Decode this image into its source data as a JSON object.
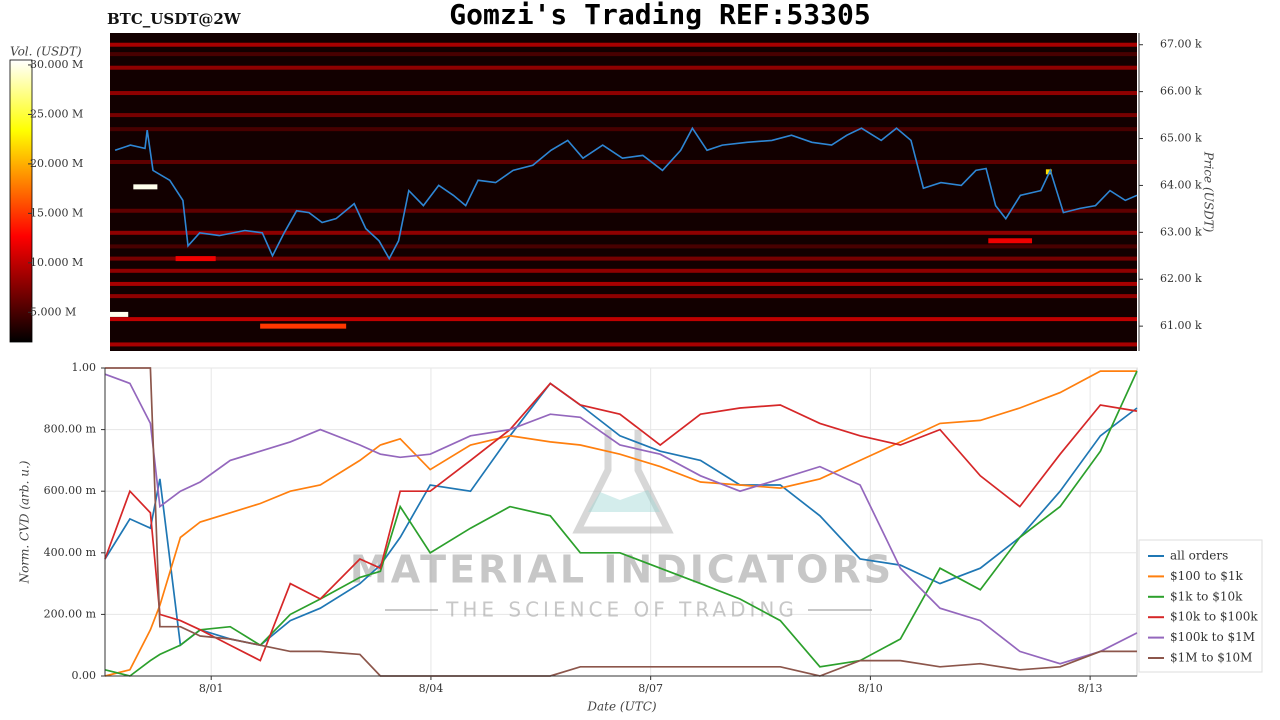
{
  "title": "Gomzi's Trading REF:53305",
  "watermark": {
    "title": "MATERIAL INDICATORS",
    "subtitle": "THE SCIENCE OF TRADING"
  },
  "chart_data": [
    {
      "type": "heatmap",
      "title": "BTC_USDT@2W",
      "ylabel": "Price (USDT)",
      "colorbar_label": "Vol. (USDT)",
      "xlim": [
        -0.45,
        13.64
      ],
      "ylim": [
        60470,
        67250
      ],
      "yticks": [
        {
          "value": 61000,
          "label": "61.00 k"
        },
        {
          "value": 62000,
          "label": "62.00 k"
        },
        {
          "value": 63000,
          "label": "63.00 k"
        },
        {
          "value": 64000,
          "label": "64.00 k"
        },
        {
          "value": 65000,
          "label": "65.00 k"
        },
        {
          "value": 66000,
          "label": "66.00 k"
        },
        {
          "value": 67000,
          "label": "67.00 k"
        }
      ],
      "clim": [
        2000000,
        30500000
      ],
      "cticks": [
        {
          "value": 5000000,
          "label": "5.000 M"
        },
        {
          "value": 10000000,
          "label": "10.000 M"
        },
        {
          "value": 15000000,
          "label": "15.000 M"
        },
        {
          "value": 20000000,
          "label": "20.000 M"
        },
        {
          "value": 25000000,
          "label": "25.000 M"
        },
        {
          "value": 30000000,
          "label": "30.000 M"
        }
      ],
      "rows": {
        "price": [
          67000,
          66800,
          66510,
          65970,
          65500,
          65200,
          64500,
          63460,
          62990,
          62700,
          62440,
          62180,
          61900,
          61640,
          61150,
          60610
        ],
        "volume": [
          9000000,
          5000000,
          8000000,
          8000000,
          7000000,
          5000000,
          6000000,
          6000000,
          8000000,
          5000000,
          7000000,
          8000000,
          9000000,
          8000000,
          10000000,
          9000000
        ]
      },
      "blocks": {
        "x_start": [
          -0.13,
          -0.45,
          1.61,
          0.45,
          11.6,
          12.39
        ],
        "x_end": [
          0.2,
          -0.2,
          2.79,
          1.0,
          12.2,
          12.47
        ],
        "price": [
          63970,
          61250,
          61000,
          62440,
          62820,
          64290
        ],
        "volume": [
          30000000,
          30000000,
          15000000,
          12000000,
          12000000,
          22000000
        ]
      },
      "price_line": {
        "color": "#2e86d4",
        "x": [
          -0.38,
          -0.17,
          0.03,
          0.06,
          0.14,
          0.37,
          0.55,
          0.62,
          0.78,
          1.05,
          1.4,
          1.64,
          1.78,
          1.94,
          2.11,
          2.28,
          2.46,
          2.65,
          2.9,
          3.06,
          3.24,
          3.38,
          3.51,
          3.65,
          3.85,
          4.06,
          4.26,
          4.43,
          4.6,
          4.84,
          5.08,
          5.35,
          5.6,
          5.83,
          6.04,
          6.31,
          6.58,
          6.86,
          7.13,
          7.38,
          7.54,
          7.74,
          7.95,
          8.29,
          8.63,
          8.9,
          9.18,
          9.45,
          9.66,
          9.86,
          10.13,
          10.34,
          10.54,
          10.71,
          10.95,
          11.23,
          11.43,
          11.57,
          11.7,
          11.84,
          12.04,
          12.32,
          12.45,
          12.63,
          12.86,
          13.07,
          13.27,
          13.48,
          13.64
        ],
        "values": [
          64750,
          64860,
          64790,
          65180,
          64320,
          64110,
          63680,
          62710,
          62990,
          62930,
          63040,
          62990,
          62500,
          62990,
          63460,
          63420,
          63210,
          63290,
          63610,
          63080,
          62820,
          62440,
          62820,
          63890,
          63570,
          64000,
          63790,
          63570,
          64110,
          64060,
          64320,
          64430,
          64750,
          64960,
          64580,
          64860,
          64580,
          64640,
          64320,
          64750,
          65220,
          64750,
          64860,
          64920,
          64960,
          65070,
          64920,
          64860,
          65070,
          65220,
          64960,
          65220,
          64960,
          63940,
          64060,
          64000,
          64320,
          64360,
          63570,
          63290,
          63790,
          63890,
          64320,
          63420,
          63510,
          63570,
          63890,
          63680,
          63790
        ]
      }
    },
    {
      "type": "line",
      "xlabel": "Date (UTC)",
      "ylabel": "Norm. CVD (arb. u.)",
      "grid": true,
      "legend": "right",
      "xlim": [
        -0.45,
        13.64
      ],
      "xticks": [
        {
          "value": 1,
          "label": "8/01"
        },
        {
          "value": 4,
          "label": "8/04"
        },
        {
          "value": 7,
          "label": "8/07"
        },
        {
          "value": 10,
          "label": "8/10"
        },
        {
          "value": 13,
          "label": "8/13"
        }
      ],
      "ylim": [
        0,
        1
      ],
      "yticks": [
        {
          "value": 0,
          "label": "0.00"
        },
        {
          "value": 0.2,
          "label": "200.00 m"
        },
        {
          "value": 0.4,
          "label": "400.00 m"
        },
        {
          "value": 0.6,
          "label": "600.00 m"
        },
        {
          "value": 0.8,
          "label": "800.00 m"
        },
        {
          "value": 1,
          "label": "1.00"
        }
      ],
      "x": [
        -0.45,
        -0.11,
        0.17,
        0.3,
        0.58,
        0.85,
        1.26,
        1.67,
        2.08,
        2.49,
        3.03,
        3.31,
        3.58,
        3.99,
        4.54,
        5.08,
        5.63,
        6.04,
        6.58,
        7.13,
        7.68,
        8.22,
        8.77,
        9.31,
        9.86,
        10.41,
        10.95,
        11.5,
        12.04,
        12.59,
        13.14,
        13.64
      ],
      "series": [
        {
          "name": "all orders",
          "color": "#1f77b4",
          "values": [
            0.38,
            0.51,
            0.48,
            0.64,
            0.1,
            0.15,
            0.12,
            0.1,
            0.18,
            0.22,
            0.3,
            0.36,
            0.45,
            0.62,
            0.6,
            0.78,
            0.95,
            0.88,
            0.78,
            0.73,
            0.7,
            0.62,
            0.62,
            0.52,
            0.38,
            0.36,
            0.3,
            0.35,
            0.45,
            0.6,
            0.78,
            0.87
          ]
        },
        {
          "name": "$100 to $1k",
          "color": "#ff7f0e",
          "values": [
            0.0,
            0.02,
            0.15,
            0.23,
            0.45,
            0.5,
            0.53,
            0.56,
            0.6,
            0.62,
            0.7,
            0.75,
            0.77,
            0.67,
            0.75,
            0.78,
            0.76,
            0.75,
            0.72,
            0.68,
            0.63,
            0.62,
            0.61,
            0.64,
            0.7,
            0.76,
            0.82,
            0.83,
            0.87,
            0.92,
            0.99,
            0.99
          ]
        },
        {
          "name": "$1k to $10k",
          "color": "#2ca02c",
          "values": [
            0.02,
            0.0,
            0.05,
            0.07,
            0.1,
            0.15,
            0.16,
            0.1,
            0.2,
            0.25,
            0.32,
            0.34,
            0.55,
            0.4,
            0.48,
            0.55,
            0.52,
            0.4,
            0.4,
            0.35,
            0.3,
            0.25,
            0.18,
            0.03,
            0.05,
            0.12,
            0.35,
            0.28,
            0.45,
            0.55,
            0.73,
            0.99
          ]
        },
        {
          "name": "$10k to $100k",
          "color": "#d62728",
          "values": [
            0.38,
            0.6,
            0.53,
            0.2,
            0.18,
            0.15,
            0.1,
            0.05,
            0.3,
            0.25,
            0.38,
            0.35,
            0.6,
            0.6,
            0.7,
            0.8,
            0.95,
            0.88,
            0.85,
            0.75,
            0.85,
            0.87,
            0.88,
            0.82,
            0.78,
            0.75,
            0.8,
            0.65,
            0.55,
            0.72,
            0.88,
            0.86
          ]
        },
        {
          "name": "$100k to $1M",
          "color": "#9467bd",
          "values": [
            0.98,
            0.95,
            0.82,
            0.55,
            0.6,
            0.63,
            0.7,
            0.73,
            0.76,
            0.8,
            0.75,
            0.72,
            0.71,
            0.72,
            0.78,
            0.8,
            0.85,
            0.84,
            0.75,
            0.72,
            0.65,
            0.6,
            0.64,
            0.68,
            0.62,
            0.35,
            0.22,
            0.18,
            0.08,
            0.04,
            0.08,
            0.14
          ]
        },
        {
          "name": "$1M to $10M",
          "color": "#8c564b",
          "values": [
            1.0,
            1.0,
            1.0,
            0.16,
            0.16,
            0.13,
            0.12,
            0.1,
            0.08,
            0.08,
            0.07,
            0.0,
            0.0,
            0.0,
            0.0,
            0.0,
            0.0,
            0.03,
            0.03,
            0.03,
            0.03,
            0.03,
            0.03,
            0.0,
            0.05,
            0.05,
            0.03,
            0.04,
            0.02,
            0.03,
            0.08,
            0.08
          ]
        }
      ]
    }
  ]
}
